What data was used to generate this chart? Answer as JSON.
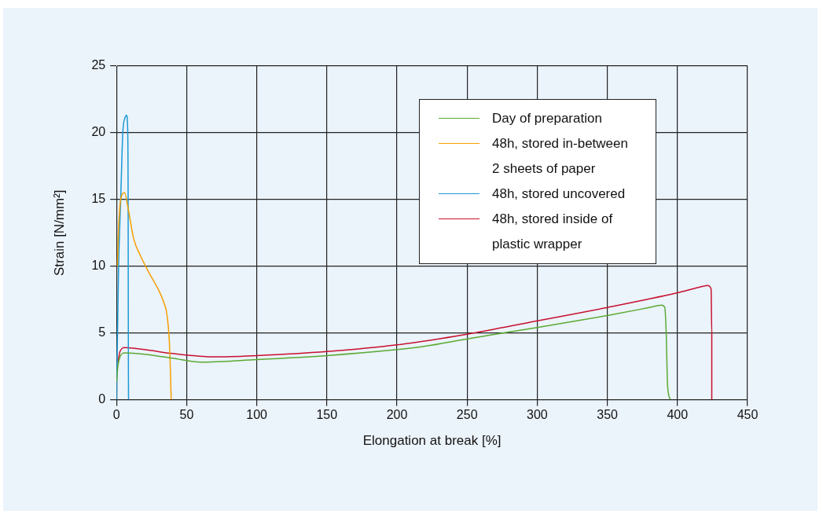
{
  "chart_data": {
    "type": "line",
    "xlabel": "Elongation at break [%]",
    "ylabel": "Strain [N/mm²]",
    "xlim": [
      0,
      450
    ],
    "xticks": [
      0,
      50,
      100,
      150,
      200,
      250,
      300,
      350,
      400,
      450
    ],
    "ylim": [
      0,
      25
    ],
    "yticks": [
      0,
      5,
      10,
      15,
      20,
      25
    ],
    "grid": true,
    "legend": "top right",
    "marker": "none",
    "line_style": "solid",
    "series": [
      {
        "name": "Day of preparation",
        "color": "#5aaa32",
        "x": [
          0,
          1,
          2.5,
          5.8,
          20,
          40,
          60,
          100,
          150,
          200,
          220,
          250,
          300,
          350,
          380,
          388.8,
          391,
          392,
          393,
          395
        ],
        "values": [
          1.3,
          2.5,
          3.2,
          3.5,
          3.4,
          3.1,
          2.8,
          3.0,
          3.3,
          3.75,
          4.0,
          4.55,
          5.4,
          6.3,
          6.9,
          7.08,
          6.9,
          5,
          1,
          0
        ]
      },
      {
        "name": "48h, stored in-between 2 sheets of paper",
        "color": "#f5a000",
        "x": [
          0.6,
          1.5,
          3,
          5.8,
          8,
          12.4,
          17,
          21.7,
          27,
          31,
          34,
          35.8,
          37.6,
          38.5,
          39
        ],
        "values": [
          10,
          12.8,
          15,
          15.5,
          14.5,
          12,
          10.8,
          9.8,
          8.8,
          8,
          7.2,
          6.5,
          4.5,
          2,
          0
        ]
      },
      {
        "name": "48h, stored uncovered",
        "color": "#1a9ad6",
        "x": [
          0,
          1.5,
          3,
          4.5,
          6,
          7.2,
          7.9,
          8.3,
          8.4,
          8.5,
          8.6
        ],
        "values": [
          0,
          10,
          15,
          20,
          21.1,
          21.3,
          20.5,
          15,
          8,
          2,
          0
        ]
      },
      {
        "name": "48h, stored inside of plastic wrapper",
        "color": "#c8102e",
        "x": [
          1,
          2.5,
          5.8,
          20,
          40,
          70,
          100,
          150,
          200,
          250,
          300,
          350,
          400,
          415,
          421.5,
          424,
          424.5,
          424.5
        ],
        "values": [
          2.8,
          3.6,
          3.9,
          3.75,
          3.45,
          3.2,
          3.3,
          3.6,
          4.1,
          4.9,
          5.9,
          6.9,
          8.0,
          8.4,
          8.55,
          8.3,
          5,
          0
        ]
      }
    ]
  }
}
